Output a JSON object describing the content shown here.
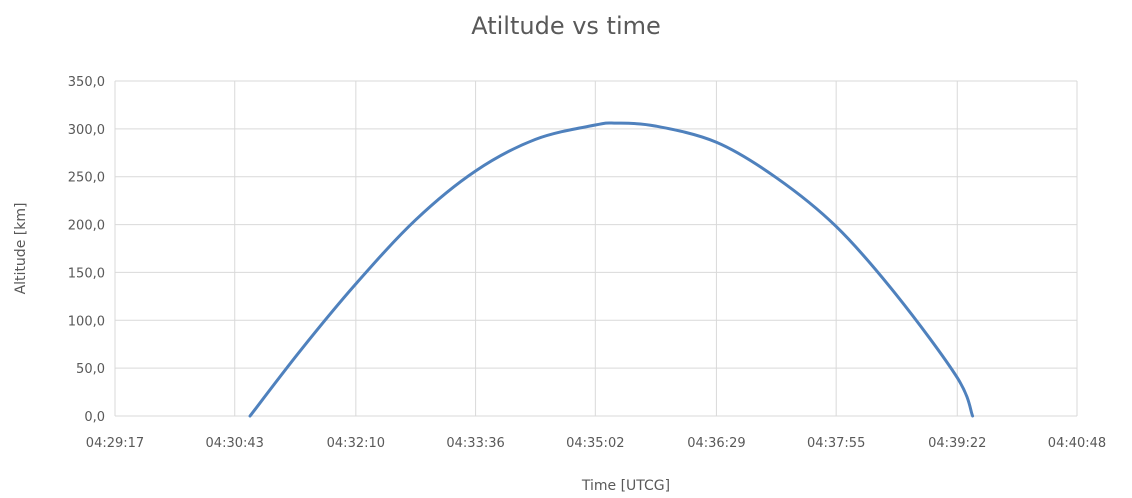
{
  "chart_data": {
    "type": "line",
    "title": "Atiltude vs time",
    "xlabel": "Time [UTCG]",
    "ylabel": "Altitude [km]",
    "ylim": [
      0,
      350
    ],
    "xlim": [
      "04:29:17",
      "04:40:48"
    ],
    "x_ticks": [
      "04:29:17",
      "04:30:43",
      "04:32:10",
      "04:33:36",
      "04:35:02",
      "04:36:29",
      "04:37:55",
      "04:39:22",
      "04:40:48"
    ],
    "y_ticks": [
      "0,0",
      "50,0",
      "100,0",
      "150,0",
      "200,0",
      "250,0",
      "300,0",
      "350,0"
    ],
    "grid": true,
    "legend": "none",
    "series": [
      {
        "color": "#4F81BD",
        "x": [
          "04:30:54",
          "04:31:30",
          "04:32:10",
          "04:32:53",
          "04:33:36",
          "04:34:19",
          "04:35:02",
          "04:35:17",
          "04:35:45",
          "04:36:29",
          "04:37:12",
          "04:37:55",
          "04:38:38",
          "04:39:22",
          "04:39:33"
        ],
        "y": [
          0,
          68,
          138,
          205,
          256,
          289,
          304,
          306,
          303,
          286,
          249,
          198,
          127,
          40,
          0
        ]
      }
    ]
  }
}
